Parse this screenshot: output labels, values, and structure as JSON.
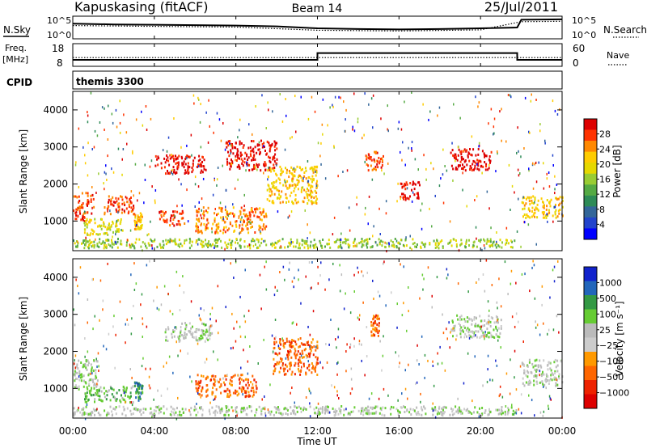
{
  "header": {
    "site": "Kapuskasing (fitACF)",
    "beam": "Beam 14",
    "date": "25/Jul/2011"
  },
  "top_panels": {
    "nsky_label": "N.Sky",
    "nsearch_label": "N.Search",
    "freq_label_line1": "Freq.",
    "freq_label_line2": "[MHz]",
    "nave_label": "Nave",
    "cpid_label": "CPID",
    "cpid_value": "themis 3300",
    "noise_ticks_left": [
      "10^5",
      "10^0"
    ],
    "noise_ticks_right": [
      "10^5",
      "10^0"
    ],
    "freq_ticks": [
      "18",
      "8"
    ],
    "nave_ticks": [
      "60",
      "0"
    ]
  },
  "time_axis": {
    "ticks": [
      "00:00",
      "04:00",
      "08:00",
      "12:00",
      "16:00",
      "20:00",
      "00:00"
    ],
    "label": "Time UT"
  },
  "chart_data": [
    {
      "type": "line",
      "name": "noise",
      "xlabel": "",
      "ylabel": "",
      "x_range_hours": [
        0,
        24
      ],
      "ylim_log10": [
        0,
        5
      ],
      "series": [
        {
          "name": "N.Sky",
          "style": "solid",
          "x": [
            0,
            2,
            4,
            6,
            8,
            10,
            12,
            14,
            16,
            18,
            20,
            21.8,
            22,
            24
          ],
          "y_log10": [
            3.5,
            3.3,
            3.2,
            3.1,
            3.0,
            2.8,
            2.3,
            2.1,
            2.0,
            2.1,
            2.3,
            2.5,
            4.5,
            4.6
          ]
        },
        {
          "name": "N.Search",
          "style": "dotted",
          "x": [
            0,
            4,
            8,
            12,
            16,
            20,
            22,
            24
          ],
          "y_log10": [
            3.0,
            2.8,
            2.6,
            1.8,
            1.6,
            1.9,
            4.0,
            4.1
          ]
        }
      ]
    },
    {
      "type": "line",
      "name": "frequency-nave",
      "xlabel": "",
      "ylabel": "",
      "x_range_hours": [
        0,
        24
      ],
      "freq_ylim_mhz": [
        8,
        18
      ],
      "nave_ylim": [
        0,
        60
      ],
      "series": [
        {
          "name": "Freq.",
          "style": "solid",
          "x": [
            0,
            12,
            12,
            21.8,
            21.8,
            24
          ],
          "y": [
            10.5,
            10.5,
            14,
            14,
            10.5,
            10.5
          ]
        },
        {
          "name": "Nave",
          "style": "dotted",
          "x": [
            0,
            24
          ],
          "y": [
            22,
            22
          ]
        }
      ]
    },
    {
      "type": "heatmap",
      "title": "",
      "xlabel": "Time UT",
      "ylabel": "Slant Range [km]",
      "x_range_hours": [
        0,
        24
      ],
      "ylim_km": [
        200,
        4500
      ],
      "yticks": [
        1000,
        2000,
        3000,
        4000
      ],
      "colorbar": {
        "label": "Power [dB]",
        "ticks": [
          "28",
          "24",
          "20",
          "16",
          "12",
          "8",
          "4"
        ],
        "colors": [
          "#dd0000",
          "#ff3300",
          "#ff8800",
          "#ffcc00",
          "#e6d800",
          "#99cc33",
          "#55aa44",
          "#2e8b57",
          "#336699",
          "#2244cc",
          "#0000ff"
        ]
      },
      "regions_hours_km": [
        {
          "t": [
            0.0,
            1.0
          ],
          "r": [
            1000,
            1800
          ],
          "level": 1
        },
        {
          "t": [
            0.5,
            2.5
          ],
          "r": [
            650,
            1100
          ],
          "level": 4
        },
        {
          "t": [
            1.5,
            3.0
          ],
          "r": [
            1200,
            1700
          ],
          "level": 1
        },
        {
          "t": [
            3.0,
            3.4
          ],
          "r": [
            800,
            1250
          ],
          "level": 3
        },
        {
          "t": [
            4.2,
            5.5
          ],
          "r": [
            900,
            1300
          ],
          "level": 1
        },
        {
          "t": [
            4.0,
            6.5
          ],
          "r": [
            2300,
            2800
          ],
          "level": 0
        },
        {
          "t": [
            6.0,
            9.5
          ],
          "r": [
            700,
            1400
          ],
          "level": 2
        },
        {
          "t": [
            7.5,
            10.0
          ],
          "r": [
            2400,
            3200
          ],
          "level": 0
        },
        {
          "t": [
            9.5,
            12.0
          ],
          "r": [
            1500,
            2500
          ],
          "level": 3
        },
        {
          "t": [
            14.3,
            15.2
          ],
          "r": [
            2400,
            2900
          ],
          "level": 1
        },
        {
          "t": [
            16.0,
            17.0
          ],
          "r": [
            1600,
            2100
          ],
          "level": 0
        },
        {
          "t": [
            18.5,
            20.5
          ],
          "r": [
            2400,
            3000
          ],
          "level": 0
        },
        {
          "t": [
            22.0,
            24.0
          ],
          "r": [
            1100,
            1700
          ],
          "level": 3
        },
        {
          "t": [
            0.0,
            21.8
          ],
          "r": [
            300,
            550
          ],
          "level": 5
        }
      ]
    },
    {
      "type": "heatmap",
      "title": "",
      "xlabel": "Time UT",
      "ylabel": "Slant Range [km]",
      "x_range_hours": [
        0,
        24
      ],
      "ylim_km": [
        200,
        4500
      ],
      "yticks": [
        1000,
        2000,
        3000,
        4000
      ],
      "colorbar": {
        "label": "Velocity [m s⁻¹]",
        "ticks": [
          "1000",
          "500",
          "100",
          "25",
          "−25",
          "−100",
          "−500",
          "−1000"
        ],
        "colors": [
          "#1122cc",
          "#2266bb",
          "#339944",
          "#66cc33",
          "#bbbbbb",
          "#cccccc",
          "#ff9900",
          "#ff6600",
          "#ee2200",
          "#dd0000"
        ]
      },
      "regions_hours_km": [
        {
          "t": [
            0.0,
            1.2
          ],
          "r": [
            1000,
            1800
          ],
          "level": 4
        },
        {
          "t": [
            0.5,
            3.0
          ],
          "r": [
            650,
            1100
          ],
          "level": 3
        },
        {
          "t": [
            3.0,
            3.4
          ],
          "r": [
            700,
            1200
          ],
          "level": 2
        },
        {
          "t": [
            4.5,
            6.8
          ],
          "r": [
            2300,
            2800
          ],
          "level": 4
        },
        {
          "t": [
            6.0,
            9.0
          ],
          "r": [
            800,
            1400
          ],
          "level": 7
        },
        {
          "t": [
            9.8,
            12.0
          ],
          "r": [
            1400,
            2400
          ],
          "level": 7
        },
        {
          "t": [
            14.6,
            15.0
          ],
          "r": [
            2400,
            3000
          ],
          "level": 7
        },
        {
          "t": [
            18.5,
            21.0
          ],
          "r": [
            2400,
            3000
          ],
          "level": 4
        },
        {
          "t": [
            22.0,
            24.0
          ],
          "r": [
            1100,
            1800
          ],
          "level": 4
        },
        {
          "t": [
            0.0,
            21.8
          ],
          "r": [
            300,
            550
          ],
          "level": 4
        }
      ]
    }
  ]
}
